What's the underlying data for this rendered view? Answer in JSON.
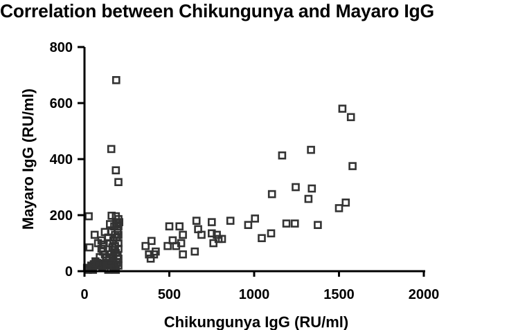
{
  "chart_data": {
    "type": "scatter",
    "title": "Correlation between Chikungunya and Mayaro IgG",
    "xlabel": "Chikungunya IgG (RU/ml)",
    "ylabel": "Mayaro IgG (RU/ml)",
    "xlim": [
      0,
      2000
    ],
    "ylim": [
      0,
      800
    ],
    "xticks": [
      0,
      500,
      1000,
      1500,
      2000
    ],
    "yticks": [
      0,
      200,
      400,
      600,
      800
    ],
    "grid": false,
    "legend": "none",
    "marker": "open-square",
    "colors": {
      "marker": "#333333",
      "axis": "#000000"
    },
    "points": [
      [
        187,
        682
      ],
      [
        158,
        436
      ],
      [
        185,
        360
      ],
      [
        200,
        318
      ],
      [
        25,
        196
      ],
      [
        160,
        198
      ],
      [
        185,
        196
      ],
      [
        200,
        186
      ],
      [
        190,
        170
      ],
      [
        200,
        160
      ],
      [
        150,
        168
      ],
      [
        175,
        160
      ],
      [
        60,
        130
      ],
      [
        80,
        100
      ],
      [
        100,
        110
      ],
      [
        110,
        95
      ],
      [
        120,
        140
      ],
      [
        140,
        120
      ],
      [
        150,
        100
      ],
      [
        160,
        140
      ],
      [
        170,
        110
      ],
      [
        180,
        130
      ],
      [
        190,
        120
      ],
      [
        200,
        100
      ],
      [
        165,
        85
      ],
      [
        175,
        75
      ],
      [
        185,
        65
      ],
      [
        195,
        55
      ],
      [
        200,
        80
      ],
      [
        155,
        60
      ],
      [
        145,
        45
      ],
      [
        135,
        30
      ],
      [
        125,
        25
      ],
      [
        115,
        20
      ],
      [
        105,
        15
      ],
      [
        95,
        20
      ],
      [
        85,
        25
      ],
      [
        75,
        30
      ],
      [
        65,
        35
      ],
      [
        55,
        25
      ],
      [
        45,
        15
      ],
      [
        35,
        10
      ],
      [
        25,
        8
      ],
      [
        20,
        5
      ],
      [
        15,
        12
      ],
      [
        30,
        85
      ],
      [
        40,
        20
      ],
      [
        50,
        5
      ],
      [
        160,
        20
      ],
      [
        170,
        35
      ],
      [
        180,
        15
      ],
      [
        190,
        30
      ],
      [
        200,
        45
      ],
      [
        200,
        20
      ],
      [
        185,
        5
      ],
      [
        170,
        10
      ],
      [
        155,
        8
      ],
      [
        140,
        5
      ],
      [
        130,
        50
      ],
      [
        120,
        60
      ],
      [
        110,
        70
      ],
      [
        100,
        80
      ],
      [
        90,
        50
      ],
      [
        200,
        130
      ],
      [
        195,
        145
      ],
      [
        205,
        175
      ],
      [
        180,
        90
      ],
      [
        170,
        50
      ],
      [
        360,
        90
      ],
      [
        395,
        108
      ],
      [
        380,
        60
      ],
      [
        390,
        45
      ],
      [
        420,
        70
      ],
      [
        410,
        60
      ],
      [
        490,
        90
      ],
      [
        500,
        160
      ],
      [
        520,
        110
      ],
      [
        540,
        90
      ],
      [
        560,
        160
      ],
      [
        570,
        100
      ],
      [
        580,
        130
      ],
      [
        580,
        60
      ],
      [
        650,
        70
      ],
      [
        660,
        180
      ],
      [
        670,
        150
      ],
      [
        690,
        130
      ],
      [
        750,
        175
      ],
      [
        750,
        135
      ],
      [
        760,
        100
      ],
      [
        780,
        130
      ],
      [
        790,
        115
      ],
      [
        810,
        115
      ],
      [
        860,
        180
      ],
      [
        965,
        165
      ],
      [
        1005,
        188
      ],
      [
        1045,
        118
      ],
      [
        1100,
        135
      ],
      [
        1105,
        275
      ],
      [
        1165,
        413
      ],
      [
        1190,
        170
      ],
      [
        1240,
        170
      ],
      [
        1245,
        300
      ],
      [
        1320,
        258
      ],
      [
        1335,
        433
      ],
      [
        1340,
        295
      ],
      [
        1375,
        165
      ],
      [
        1500,
        225
      ],
      [
        1520,
        580
      ],
      [
        1540,
        245
      ],
      [
        1570,
        550
      ],
      [
        1580,
        375
      ]
    ]
  }
}
